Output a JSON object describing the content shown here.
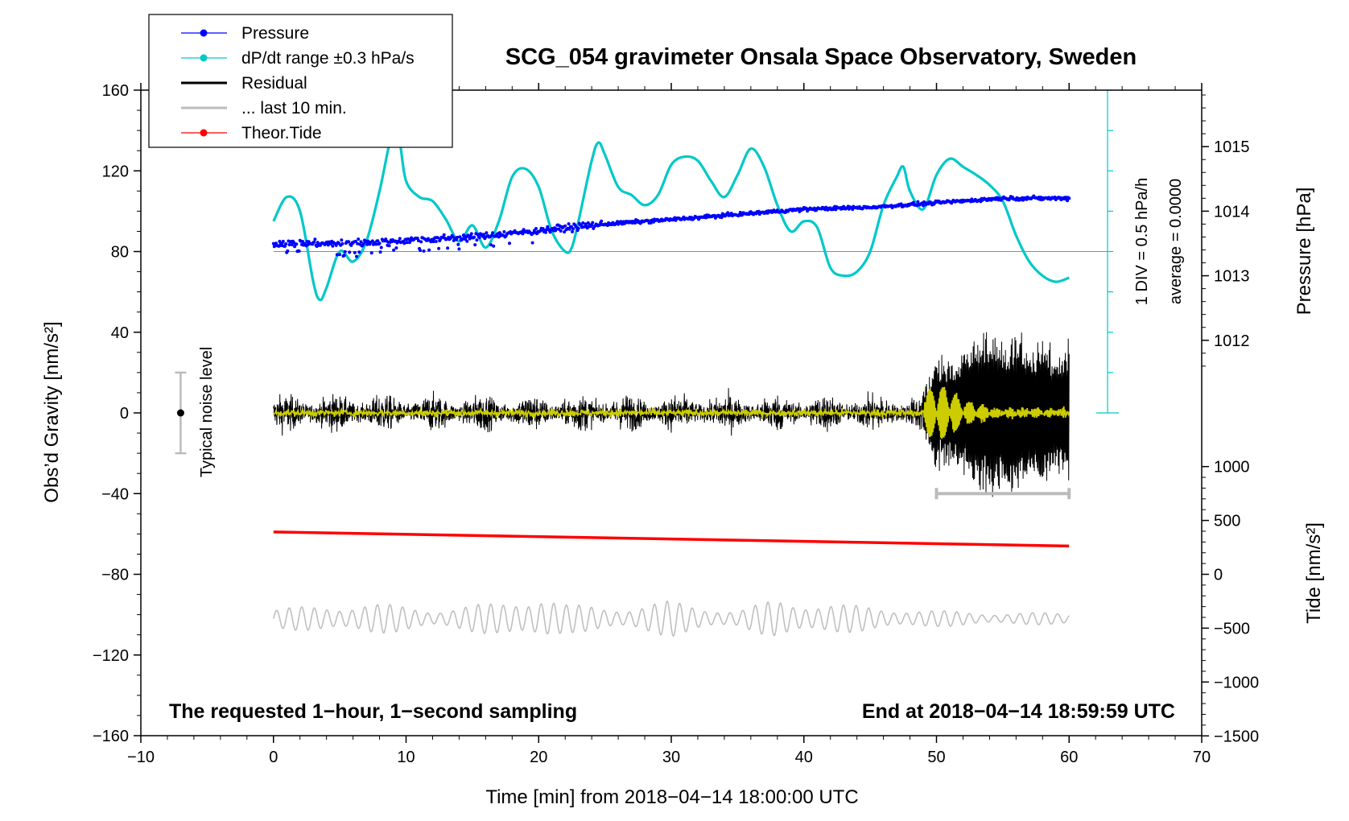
{
  "chart_data": {
    "type": "line",
    "title": "SCG_054 gravimeter Onsala Space Observatory, Sweden",
    "xlabel": "Time [min] from 2018−04−14 18:00:00 UTC",
    "ylabel_left": "Obs’d Gravity [nm/s²]",
    "ylabel_right_pressure": "Pressure [hPa]",
    "ylabel_right_tide": "Tide [nm/s²]",
    "xlim": [
      -10,
      70
    ],
    "ylim": [
      -160,
      160
    ],
    "x_ticks": [
      "−10",
      "0",
      "10",
      "20",
      "30",
      "40",
      "50",
      "60",
      "70"
    ],
    "x_tick_values": [
      -10,
      0,
      10,
      20,
      30,
      40,
      50,
      60,
      70
    ],
    "y_ticks": [
      "160",
      "120",
      "80",
      "40",
      "0",
      "−40",
      "−80",
      "−120",
      "−160"
    ],
    "y_tick_values": [
      160,
      120,
      80,
      40,
      0,
      -40,
      -80,
      -120,
      -160
    ],
    "pressure_axis": {
      "ticks": [
        "1015",
        "1014",
        "1013",
        "1012"
      ],
      "tick_values": [
        1015,
        1014,
        1013,
        1012
      ],
      "plot_y_at_1014": 100,
      "plot_units_per_hPa": 32
    },
    "tide_axis": {
      "ticks": [
        "1000",
        "500",
        "0",
        "−500",
        "−1000",
        "−1500"
      ],
      "tick_values": [
        1000,
        500,
        0,
        -500,
        -1000,
        -1500
      ],
      "plot_y_at_0": -80,
      "plot_units_per_500": 26.7
    },
    "dpdt_scale": {
      "label_div": "1 DIV = 0.5 hPa/h",
      "label_avg": "average = 0.0000",
      "baseline_y": 80,
      "top_y": 160,
      "bottom_y": 0,
      "x": 62.9
    },
    "series": [
      {
        "name": "Pressure",
        "color": "#0000ff",
        "x": [
          0,
          5,
          10,
          15,
          20,
          25,
          30,
          35,
          40,
          45,
          50,
          55,
          60
        ],
        "y": [
          1013.5,
          1013.5,
          1013.55,
          1013.6,
          1013.7,
          1013.8,
          1013.87,
          1013.95,
          1014.03,
          1014.06,
          1014.13,
          1014.2,
          1014.2
        ]
      },
      {
        "name": "dP/dt range ±0.3 hPa/s",
        "color": "#00c8c8",
        "x": [
          0,
          1,
          2,
          3,
          3.5,
          4,
          5,
          6,
          7,
          8,
          9,
          9.5,
          10,
          11,
          12,
          13,
          14,
          15,
          16,
          17,
          18,
          19,
          20,
          21,
          22,
          22.5,
          23,
          24,
          24.5,
          25,
          26,
          27,
          28,
          29,
          30,
          31,
          32,
          33,
          34,
          35,
          36,
          37,
          38,
          39,
          40,
          41,
          42,
          43,
          44,
          45,
          46,
          47,
          47.5,
          48,
          49,
          50,
          51,
          52,
          53,
          54,
          55,
          56,
          57,
          58,
          59,
          60
        ],
        "y": [
          95,
          107,
          100,
          65,
          56,
          62,
          80,
          75,
          85,
          110,
          140,
          135,
          115,
          107,
          105,
          96,
          85,
          93,
          82,
          95,
          117,
          121,
          112,
          90,
          80,
          82,
          95,
          125,
          134,
          128,
          112,
          108,
          103,
          108,
          123,
          127,
          125,
          115,
          107,
          118,
          131,
          122,
          103,
          90,
          95,
          92,
          72,
          68,
          70,
          80,
          103,
          117,
          122,
          110,
          101,
          118,
          126,
          122,
          118,
          113,
          105,
          88,
          75,
          68,
          65,
          67
        ]
      },
      {
        "name": "Residual",
        "color": "#000000",
        "x_start": 0,
        "x_end": 60,
        "quiet_amplitude": 6,
        "event_start": 49,
        "event_envelope": [
          [
            49,
            10
          ],
          [
            50,
            30
          ],
          [
            51,
            27
          ],
          [
            52,
            32
          ],
          [
            53,
            40
          ],
          [
            54,
            42
          ],
          [
            55,
            37
          ],
          [
            56,
            42
          ],
          [
            57,
            35
          ],
          [
            58,
            40
          ],
          [
            59,
            30
          ],
          [
            60,
            40
          ]
        ]
      },
      {
        "name": "... last 10 min.",
        "color": "#bbbbbb",
        "x": [
          50,
          60
        ],
        "y": [
          -40,
          -40
        ]
      },
      {
        "name": "Theor.Tide",
        "color": "#ff0000",
        "x": [
          0,
          60
        ],
        "y": [
          -59,
          -66
        ]
      },
      {
        "name": "",
        "color": "#cccc00",
        "x_start": 0,
        "x_end": 60,
        "quiet_amplitude": 1.5,
        "event_envelope": [
          [
            49,
            10
          ],
          [
            50,
            14
          ],
          [
            51,
            12
          ],
          [
            52,
            6
          ],
          [
            53,
            5
          ],
          [
            54,
            3
          ],
          [
            55,
            2
          ],
          [
            60,
            2
          ]
        ]
      },
      {
        "name": "",
        "color": "#c0c0c0",
        "x_start": 0,
        "x_end": 60,
        "center": -102,
        "amplitude": 7,
        "envelope": [
          [
            0,
            5
          ],
          [
            7,
            8
          ],
          [
            12,
            5
          ],
          [
            17,
            8
          ],
          [
            20,
            13
          ],
          [
            22,
            7
          ],
          [
            27,
            6
          ],
          [
            30,
            9
          ],
          [
            35,
            4
          ],
          [
            38,
            10
          ],
          [
            43,
            7
          ],
          [
            50,
            4
          ],
          [
            55,
            3
          ],
          [
            60,
            3
          ]
        ]
      }
    ],
    "noise_bar": {
      "label": "Typical noise level",
      "x": -7,
      "y_low": -20,
      "y_high": 20,
      "y_mid": 0
    },
    "annotations": [
      "The requested 1−hour, 1−second sampling",
      "End at 2018−04−14 18:59:59 UTC"
    ],
    "legend_position": "top-left",
    "grid": false
  }
}
